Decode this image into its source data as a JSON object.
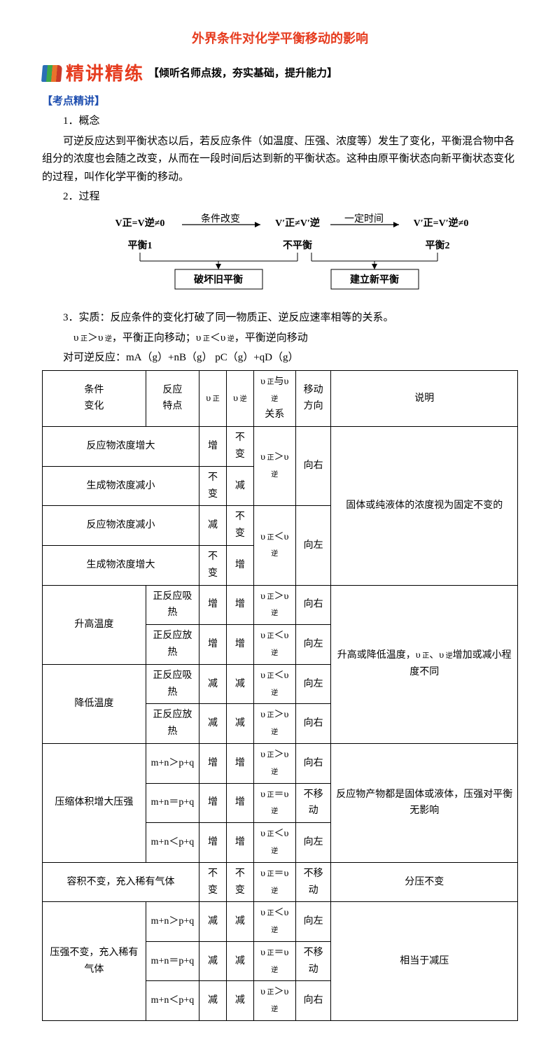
{
  "title": "外界条件对化学平衡移动的影响",
  "banner": {
    "main": "精讲精练",
    "sub": "【倾听名师点拨，夯实基础，提升能力】"
  },
  "sectionLabel": "【考点精讲】",
  "concept": {
    "heading": "1．概念",
    "body": "可逆反应达到平衡状态以后，若反应条件（如温度、压强、浓度等）发生了变化，平衡混合物中各组分的浓度也会随之改变，从而在一段时间后达到新的平衡状态。这种由原平衡状态向新平衡状态变化的过程，叫作化学平衡的移动。"
  },
  "process": {
    "heading": "2．过程",
    "eq1": "V₍正₎=V₍逆₎≠0",
    "state1": "平衡1",
    "arrow1": "条件改变",
    "eq2": "V′₍正₎≠V′₍逆₎",
    "state2": "不平衡",
    "arrow2": "一定时间",
    "eq3": "V′₍正₎=V′₍逆₎≠0",
    "state3": "平衡2",
    "box1": "破坏旧平衡",
    "box2": "建立新平衡"
  },
  "essence": {
    "heading": "3．实质：反应条件的变化打破了同一物质正、逆反应速率相等的关系。",
    "line2": "υ₍正₎＞υ₍逆₎，平衡正向移动；υ₍正₎＜υ₍逆₎，平衡逆向移动",
    "line3": "对可逆反应：mA（g）+nB（g） pC（g）+qD（g）"
  },
  "table": {
    "headers": [
      "条件\n变化",
      "反应\n特点",
      "υ₍正₎",
      "υ₍逆₎",
      "υ₍正₎与υ₍逆₎\n关系",
      "移动\n方向",
      "说明"
    ],
    "rows": [
      {
        "c1": null,
        "c2": "反应物浓度增大",
        "v1": "增",
        "v2": "不变",
        "rel": null,
        "dir": null,
        "note": null
      },
      {
        "c1": null,
        "c2": "生成物浓度减小",
        "v1": "不变",
        "v2": "减",
        "rel": "υ₍正₎＞υ₍逆₎",
        "dir": "向右",
        "note": "固体或纯液体的浓度视为固定不变的"
      },
      {
        "c1": null,
        "c2": "反应物浓度减小",
        "v1": "减",
        "v2": "不变",
        "rel": null,
        "dir": null,
        "note": null
      },
      {
        "c1": null,
        "c2": "生成物浓度增大",
        "v1": "不变",
        "v2": "增",
        "rel": "υ₍正₎＜υ₍逆₎",
        "dir": "向左",
        "note": null
      },
      {
        "c1": "升高温度",
        "c2": "正反应吸热",
        "v1": "增",
        "v2": "增",
        "rel": "υ₍正₎＞υ₍逆₎",
        "dir": "向右",
        "note": "升高或降低温度，υ₍正₎、υ₍逆₎增加或减小程度不同"
      },
      {
        "c1": null,
        "c2": "正反应放热",
        "v1": "增",
        "v2": "增",
        "rel": "υ₍正₎＜υ₍逆₎",
        "dir": "向左",
        "note": null
      },
      {
        "c1": "降低温度",
        "c2": "正反应吸热",
        "v1": "减",
        "v2": "减",
        "rel": "υ₍正₎＜υ₍逆₎",
        "dir": "向左",
        "note": null
      },
      {
        "c1": null,
        "c2": "正反应放热",
        "v1": "减",
        "v2": "减",
        "rel": "υ₍正₎＞υ₍逆₎",
        "dir": "向右",
        "note": null
      },
      {
        "c1": "压缩体积增大压强",
        "c2": "m+n＞p+q",
        "v1": "增",
        "v2": "增",
        "rel": "υ₍正₎＞υ₍逆₎",
        "dir": "向右",
        "note": "反应物产物都是固体或液体，压强对平衡无影响"
      },
      {
        "c1": null,
        "c2": "m+n＝p+q",
        "v1": "增",
        "v2": "增",
        "rel": "υ₍正₎＝υ₍逆₎",
        "dir": "不移动",
        "note": null
      },
      {
        "c1": null,
        "c2": "m+n＜p+q",
        "v1": "增",
        "v2": "增",
        "rel": "υ₍正₎＜υ₍逆₎",
        "dir": "向左",
        "note": null
      },
      {
        "c1": "容积不变，充入稀有气体",
        "c2": null,
        "v1": "不变",
        "v2": "不变",
        "rel": "υ₍正₎＝υ₍逆₎",
        "dir": "不移动",
        "note": "分压不变"
      },
      {
        "c1": "压强不变，充入稀有气体",
        "c2": "m+n＞p+q",
        "v1": "减",
        "v2": "减",
        "rel": "υ₍正₎＜υ₍逆₎",
        "dir": "向左",
        "note": "相当于减压"
      },
      {
        "c1": null,
        "c2": "m+n＝p+q",
        "v1": "减",
        "v2": "减",
        "rel": "υ₍正₎＝υ₍逆₎",
        "dir": "不移动",
        "note": null
      },
      {
        "c1": null,
        "c2": "m+n＜p+q",
        "v1": "减",
        "v2": "减",
        "rel": "υ₍正₎＞υ₍逆₎",
        "dir": "向右",
        "note": null
      }
    ]
  }
}
